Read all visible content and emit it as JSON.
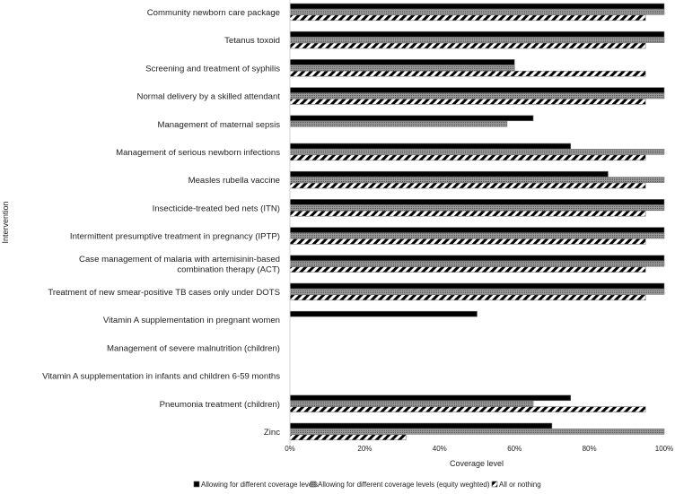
{
  "chart_data": {
    "type": "bar",
    "orientation": "horizontal",
    "title": "",
    "xlabel": "Coverage level",
    "ylabel": "Intervention",
    "xlim": [
      0,
      100
    ],
    "x_ticks": [
      "0%",
      "20%",
      "40%",
      "60%",
      "80%",
      "100%"
    ],
    "grid": false,
    "legend_position": "bottom",
    "categories": [
      "Community newborn care package",
      "Tetanus toxoid",
      "Screening and treatment of syphilis",
      "Normal delivery by a skilled attendant",
      "Management of maternal sepsis",
      "Management of serious newborn infections",
      "Measles rubella vaccine",
      "Insecticide-treated bed nets (ITN)",
      "Intermittent presumptive treatment in pregnancy (IPTP)",
      "Case management of malaria with artemisinin-based combination therapy (ACT)",
      "Treatment of new smear-positive TB cases only under DOTS",
      "Vitamin A supplementation in pregnant women",
      "Management of severe malnutrition (children)",
      "Vitamin A supplementation in infants and children 6-59 months",
      "Pneumonia treatment (children)",
      "Zinc"
    ],
    "series": [
      {
        "name": "Allowing for different coverage levels",
        "pattern": "solid",
        "color": "#000000",
        "values": [
          100,
          100,
          60,
          100,
          65,
          75,
          85,
          100,
          100,
          100,
          100,
          50,
          0,
          0,
          75,
          70
        ]
      },
      {
        "name": "Allowing for different coverage levels (equity weghted)",
        "pattern": "dotted",
        "color": "#808080",
        "values": [
          100,
          100,
          60,
          100,
          58,
          100,
          100,
          100,
          100,
          100,
          100,
          0,
          0,
          0,
          65,
          100
        ]
      },
      {
        "name": "All or nothing",
        "pattern": "diagonal-stripes",
        "color": "#000000",
        "values": [
          95,
          95,
          95,
          95,
          0,
          95,
          95,
          95,
          95,
          95,
          95,
          0,
          0,
          0,
          95,
          31
        ]
      }
    ]
  }
}
